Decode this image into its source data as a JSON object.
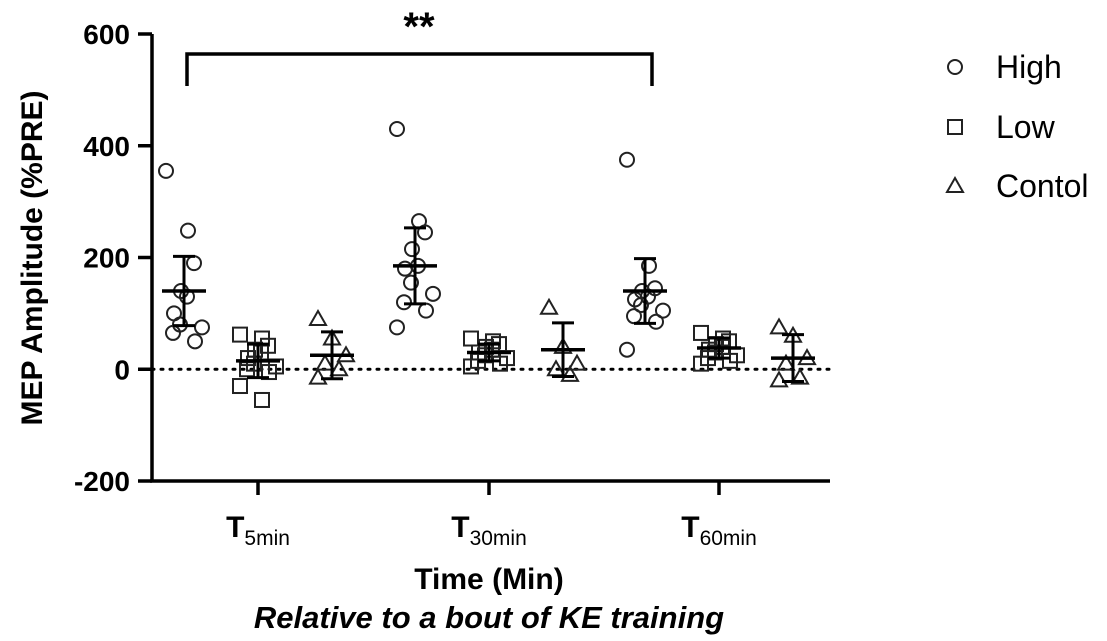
{
  "chart_data": {
    "type": "scatter",
    "ylabel": "MEP Amplitude (%PRE)",
    "xlabel": "Time (Min)",
    "subtitle": "Relative to a bout of KE training",
    "ylim": [
      -200,
      600
    ],
    "yticks": [
      "600",
      "400",
      "200",
      "0",
      "-200"
    ],
    "ytick_values": [
      600,
      400,
      200,
      0,
      -200
    ],
    "reference_line": 0,
    "categories": [
      {
        "main": "T",
        "sub": "5min"
      },
      {
        "main": "T",
        "sub": "30min"
      },
      {
        "main": "T",
        "sub": "60min"
      }
    ],
    "significance": {
      "text": "**",
      "from": 0,
      "to": 2
    },
    "legend": {
      "position": "top-right"
    },
    "series": [
      {
        "name": "High",
        "marker": "circle",
        "groups": [
          {
            "points": [
              355,
              248,
              190,
              140,
              130,
              100,
              80,
              75,
              65,
              50
            ],
            "mean": 140,
            "sd": 62
          },
          {
            "points": [
              430,
              265,
              245,
              215,
              185,
              180,
              155,
              135,
              120,
              105,
              75
            ],
            "mean": 185,
            "sd": 68
          },
          {
            "points": [
              375,
              185,
              145,
              140,
              130,
              125,
              115,
              105,
              95,
              85,
              35
            ],
            "mean": 140,
            "sd": 58
          }
        ]
      },
      {
        "name": "Low",
        "marker": "square",
        "groups": [
          {
            "points": [
              62,
              55,
              42,
              35,
              30,
              20,
              10,
              5,
              0,
              -5,
              -30,
              -55
            ],
            "mean": 15,
            "sd": 30
          },
          {
            "points": [
              55,
              50,
              45,
              40,
              35,
              30,
              25,
              20,
              15,
              10,
              5
            ],
            "mean": 30,
            "sd": 15
          },
          {
            "points": [
              65,
              55,
              50,
              45,
              40,
              35,
              30,
              25,
              20,
              15,
              10
            ],
            "mean": 38,
            "sd": 18
          }
        ]
      },
      {
        "name": "Contol",
        "marker": "triangle",
        "groups": [
          {
            "points": [
              90,
              55,
              25,
              10,
              0,
              -15
            ],
            "mean": 25,
            "sd": 42
          },
          {
            "points": [
              110,
              40,
              10,
              0,
              -10
            ],
            "mean": 35,
            "sd": 48
          },
          {
            "points": [
              75,
              60,
              20,
              10,
              -15,
              -20
            ],
            "mean": 20,
            "sd": 42
          }
        ]
      }
    ]
  }
}
